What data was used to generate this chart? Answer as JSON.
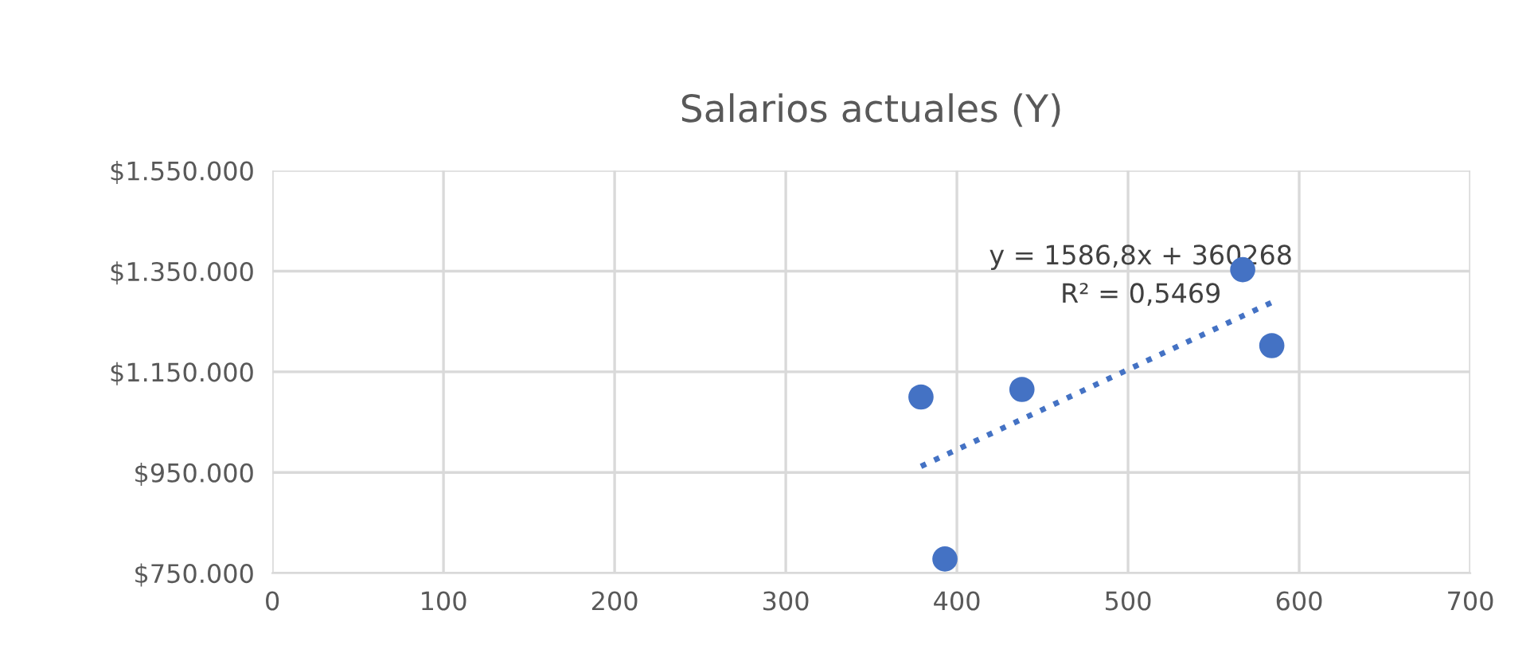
{
  "chart_data": {
    "type": "scatter",
    "title": "Salarios actuales (Y)",
    "x": [
      379,
      393,
      438,
      567,
      584
    ],
    "series": [
      {
        "color": "#4472c4",
        "values": [
          1100000,
          778000,
          1115000,
          1353000,
          1202000
        ],
        "marker": "circle"
      },
      {
        "type": "line",
        "color": "#4472c4",
        "x": [
          379,
          584
        ],
        "values": [
          962000,
          1288000
        ],
        "line_style": "dotted",
        "marker": "none"
      }
    ],
    "xlim": [
      0,
      700
    ],
    "xticks": [
      0,
      100,
      200,
      300,
      400,
      500,
      600,
      700
    ],
    "ylim": [
      750000,
      1550000
    ],
    "yticks": [
      {
        "value": 750000,
        "label": "$750.000"
      },
      {
        "value": 950000,
        "label": "$950.000"
      },
      {
        "value": 1150000,
        "label": "$1.150.000"
      },
      {
        "value": 1350000,
        "label": "$1.350.000"
      },
      {
        "value": 1550000,
        "label": "$1.550.000"
      }
    ],
    "grid": true,
    "legend": false,
    "annotations": [
      "y = 1586,8x + 360268",
      "R² = 0,5469"
    ]
  }
}
